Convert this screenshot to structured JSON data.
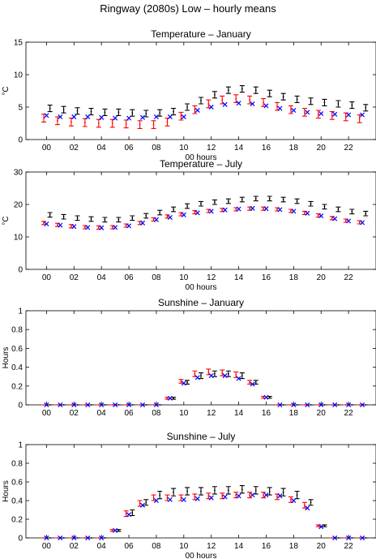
{
  "figure_title": "Ringway (2080s) Low – hourly means",
  "legend_note": "",
  "chart_data": [
    {
      "type": "scatter",
      "title": "Temperature – January",
      "xlabel": "00 hours",
      "ylabel": "°C",
      "ylim": [
        0,
        15
      ],
      "yticks": [
        "0",
        "5",
        "10",
        "15"
      ],
      "xticks": [
        "00",
        "02",
        "04",
        "06",
        "08",
        "10",
        "12",
        "14",
        "16",
        "18",
        "20",
        "22"
      ],
      "x": [
        0,
        1,
        2,
        3,
        4,
        5,
        6,
        7,
        8,
        9,
        10,
        11,
        12,
        13,
        14,
        15,
        16,
        17,
        18,
        19,
        20,
        21,
        22,
        23
      ],
      "series": [
        {
          "values": [
            4.8,
            4.6,
            4.4,
            4.3,
            4.2,
            4.2,
            4.1,
            4.0,
            4.1,
            4.3,
            5.0,
            6.0,
            6.9,
            7.6,
            7.8,
            7.6,
            7.1,
            6.6,
            6.2,
            5.9,
            5.7,
            5.5,
            5.3,
            4.9
          ],
          "err": [
            0.5,
            0.5,
            0.5,
            0.5,
            0.5,
            0.5,
            0.5,
            0.5,
            0.5,
            0.5,
            0.5,
            0.5,
            0.5,
            0.5,
            0.5,
            0.5,
            0.5,
            0.5,
            0.5,
            0.5,
            0.5,
            0.5,
            0.5,
            0.5
          ],
          "color": "#000000",
          "marker": "errorbar"
        },
        {
          "values": [
            3.3,
            2.9,
            2.7,
            2.6,
            2.5,
            2.5,
            2.4,
            2.3,
            2.3,
            2.7,
            3.6,
            4.6,
            5.5,
            6.1,
            6.3,
            6.1,
            5.7,
            5.1,
            4.6,
            4.2,
            3.9,
            3.7,
            3.5,
            3.2
          ],
          "err": [
            0.6,
            0.6,
            0.6,
            0.6,
            0.6,
            0.6,
            0.6,
            0.6,
            0.6,
            0.6,
            0.6,
            0.6,
            0.6,
            0.6,
            0.6,
            0.6,
            0.6,
            0.6,
            0.6,
            0.6,
            0.6,
            0.6,
            0.6,
            0.6
          ],
          "color": "#ff0000",
          "marker": "errorbar"
        },
        {
          "values": [
            3.7,
            3.5,
            3.5,
            3.5,
            3.4,
            3.3,
            3.3,
            3.4,
            3.5,
            3.5,
            3.5,
            4.5,
            5.0,
            5.4,
            5.6,
            5.5,
            5.2,
            4.8,
            4.5,
            4.2,
            4.0,
            3.9,
            3.8,
            3.8
          ],
          "color": "#0000ff",
          "marker": "x"
        }
      ]
    },
    {
      "type": "scatter",
      "title": "Temperature – July",
      "xlabel": "00 hours",
      "ylabel": "°C",
      "ylim": [
        0,
        30
      ],
      "yticks": [
        "0",
        "10",
        "20",
        "30"
      ],
      "xticks": [
        "00",
        "02",
        "04",
        "06",
        "08",
        "10",
        "12",
        "14",
        "16",
        "18",
        "20",
        "22"
      ],
      "x": [
        0,
        1,
        2,
        3,
        4,
        5,
        6,
        7,
        8,
        9,
        10,
        11,
        12,
        13,
        14,
        15,
        16,
        17,
        18,
        19,
        20,
        21,
        22,
        23
      ],
      "series": [
        {
          "values": [
            16.8,
            16.2,
            15.8,
            15.5,
            15.3,
            15.3,
            15.8,
            16.5,
            17.5,
            18.5,
            19.5,
            20.2,
            20.7,
            21.0,
            21.5,
            21.8,
            21.8,
            21.5,
            21.0,
            20.2,
            19.3,
            18.5,
            17.8,
            17.2
          ],
          "err": [
            0.7,
            0.7,
            0.7,
            0.7,
            0.7,
            0.7,
            0.7,
            0.7,
            0.7,
            0.7,
            0.7,
            0.7,
            0.7,
            0.7,
            0.7,
            0.7,
            0.7,
            0.7,
            0.7,
            0.7,
            0.7,
            0.7,
            0.7,
            0.7
          ],
          "color": "#000000",
          "marker": "errorbar"
        },
        {
          "values": [
            14.3,
            13.7,
            13.3,
            13.0,
            12.9,
            13.0,
            13.5,
            14.3,
            15.4,
            16.3,
            17.0,
            17.6,
            18.0,
            18.3,
            18.5,
            18.7,
            18.7,
            18.5,
            18.0,
            17.4,
            16.6,
            15.8,
            15.0,
            14.5
          ],
          "err": [
            0.5,
            0.5,
            0.5,
            0.5,
            0.5,
            0.5,
            0.5,
            0.5,
            0.5,
            0.5,
            0.5,
            0.5,
            0.5,
            0.5,
            0.5,
            0.5,
            0.5,
            0.5,
            0.5,
            0.5,
            0.5,
            0.5,
            0.5,
            0.5
          ],
          "color": "#ff0000",
          "marker": "errorbar"
        },
        {
          "values": [
            14.0,
            13.6,
            13.2,
            12.9,
            12.8,
            12.9,
            13.4,
            14.3,
            15.3,
            16.0,
            16.8,
            17.4,
            17.9,
            18.3,
            18.6,
            18.8,
            18.7,
            18.4,
            17.9,
            17.3,
            16.5,
            15.6,
            14.9,
            14.4
          ],
          "color": "#0000ff",
          "marker": "x"
        }
      ]
    },
    {
      "type": "scatter",
      "title": "Sunshine – January",
      "xlabel": "",
      "ylabel": "Hours",
      "ylim": [
        0,
        1
      ],
      "yticks": [
        "0",
        "0.2",
        "0.4",
        "0.6",
        "0.8",
        "1"
      ],
      "xticks": [
        "00",
        "02",
        "04",
        "06",
        "08",
        "10",
        "12",
        "14",
        "16",
        "18",
        "20",
        "22"
      ],
      "x": [
        0,
        1,
        2,
        3,
        4,
        5,
        6,
        7,
        8,
        9,
        10,
        11,
        12,
        13,
        14,
        15,
        16,
        17,
        18,
        19,
        20,
        21,
        22,
        23
      ],
      "series": [
        {
          "values": [
            0,
            0,
            0,
            0,
            0,
            0,
            0,
            0,
            0,
            0.07,
            0.24,
            0.31,
            0.33,
            0.33,
            0.31,
            0.24,
            0.08,
            0,
            0,
            0,
            0,
            0,
            0,
            0
          ],
          "err": [
            0,
            0,
            0,
            0,
            0,
            0,
            0,
            0,
            0,
            0.01,
            0.02,
            0.03,
            0.03,
            0.03,
            0.03,
            0.02,
            0.01,
            0,
            0,
            0,
            0,
            0,
            0,
            0
          ],
          "color": "#000000",
          "marker": "errorbar"
        },
        {
          "values": [
            0,
            0,
            0,
            0,
            0,
            0,
            0,
            0,
            0,
            0.07,
            0.25,
            0.33,
            0.35,
            0.34,
            0.32,
            0.24,
            0.08,
            0,
            0,
            0,
            0,
            0,
            0,
            0
          ],
          "err": [
            0,
            0,
            0,
            0,
            0,
            0,
            0,
            0,
            0,
            0.01,
            0.02,
            0.03,
            0.03,
            0.03,
            0.03,
            0.02,
            0.01,
            0,
            0,
            0,
            0,
            0,
            0,
            0
          ],
          "color": "#ff0000",
          "marker": "errorbar"
        },
        {
          "values": [
            0,
            0,
            0,
            0,
            0,
            0,
            0,
            0,
            0,
            0.07,
            0.23,
            0.29,
            0.31,
            0.31,
            0.28,
            0.22,
            0.08,
            0,
            0,
            0,
            0,
            0,
            0,
            0
          ],
          "color": "#0000ff",
          "marker": "x"
        }
      ]
    },
    {
      "type": "scatter",
      "title": "Sunshine – July",
      "xlabel": "00 hours",
      "ylabel": "Hours",
      "ylim": [
        0,
        1
      ],
      "yticks": [
        "0",
        "0.2",
        "0.4",
        "0.6",
        "0.8",
        "1"
      ],
      "xticks": [
        "00",
        "02",
        "04",
        "06",
        "08",
        "10",
        "12",
        "14",
        "16",
        "18",
        "20",
        "22"
      ],
      "x": [
        0,
        1,
        2,
        3,
        4,
        5,
        6,
        7,
        8,
        9,
        10,
        11,
        12,
        13,
        14,
        15,
        16,
        17,
        18,
        19,
        20,
        21,
        22,
        23
      ],
      "series": [
        {
          "values": [
            0,
            0,
            0,
            0,
            0,
            0.08,
            0.27,
            0.38,
            0.46,
            0.49,
            0.5,
            0.5,
            0.51,
            0.51,
            0.52,
            0.51,
            0.5,
            0.49,
            0.46,
            0.38,
            0.13,
            0,
            0,
            0
          ],
          "err": [
            0,
            0,
            0,
            0,
            0,
            0.01,
            0.03,
            0.03,
            0.04,
            0.04,
            0.04,
            0.04,
            0.04,
            0.04,
            0.04,
            0.04,
            0.04,
            0.04,
            0.04,
            0.03,
            0.01,
            0,
            0,
            0
          ],
          "color": "#000000",
          "marker": "errorbar"
        },
        {
          "values": [
            0,
            0,
            0,
            0,
            0,
            0.08,
            0.26,
            0.37,
            0.43,
            0.43,
            0.43,
            0.44,
            0.45,
            0.45,
            0.46,
            0.46,
            0.46,
            0.44,
            0.41,
            0.35,
            0.13,
            0,
            0,
            0
          ],
          "err": [
            0,
            0,
            0,
            0,
            0,
            0.01,
            0.03,
            0.03,
            0.03,
            0.03,
            0.03,
            0.03,
            0.03,
            0.03,
            0.03,
            0.03,
            0.03,
            0.03,
            0.03,
            0.03,
            0.01,
            0,
            0,
            0
          ],
          "color": "#ff0000",
          "marker": "errorbar"
        },
        {
          "values": [
            0,
            0,
            0,
            0,
            0,
            0.08,
            0.25,
            0.35,
            0.4,
            0.41,
            0.41,
            0.42,
            0.43,
            0.44,
            0.45,
            0.46,
            0.46,
            0.45,
            0.4,
            0.32,
            0.12,
            0,
            0,
            0
          ],
          "color": "#0000ff",
          "marker": "x"
        }
      ]
    }
  ]
}
